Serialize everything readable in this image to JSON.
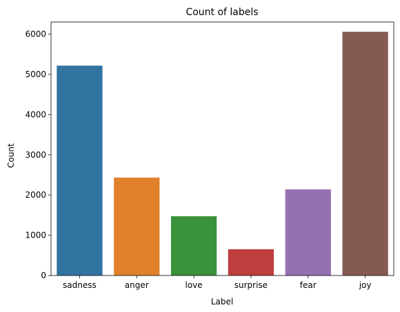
{
  "chart_data": {
    "type": "bar",
    "title": "Count of labels",
    "xlabel": "Label",
    "ylabel": "Count",
    "categories": [
      "sadness",
      "anger",
      "love",
      "surprise",
      "fear",
      "joy"
    ],
    "values": [
      5216,
      2434,
      1474,
      653,
      2140,
      6057
    ],
    "ylim": [
      0,
      6300
    ],
    "yticks": [
      0,
      1000,
      2000,
      3000,
      4000,
      5000,
      6000
    ],
    "colors": [
      "#3274a1",
      "#e1812c",
      "#3a923a",
      "#c03d3e",
      "#9372b2",
      "#845b53"
    ],
    "grid": false,
    "legend": "none"
  }
}
